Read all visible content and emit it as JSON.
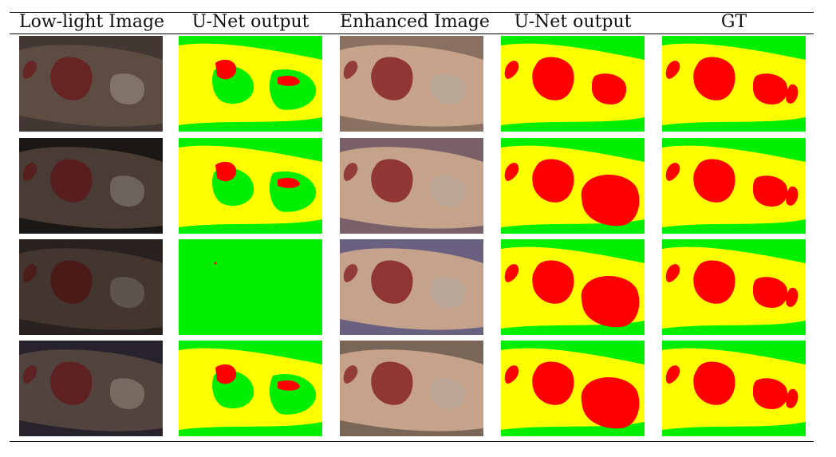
{
  "figure": {
    "columns": [
      {
        "label": "Low-light Image",
        "kind": "photo",
        "variant": "lowlight"
      },
      {
        "label": "U-Net output",
        "kind": "mask",
        "variant": "unet_low"
      },
      {
        "label": "Enhanced Image",
        "kind": "photo",
        "variant": "enhanced"
      },
      {
        "label": "U-Net output",
        "kind": "mask",
        "variant": "unet_enh"
      },
      {
        "label": "GT",
        "kind": "mask",
        "variant": "gt"
      }
    ],
    "rows": 4,
    "colors": {
      "background_class": "#00ee00",
      "skin_class": "#ffff00",
      "wound_class": "#ff0000",
      "phantom_skin": "#c9a58c",
      "wound_tissue": "#8a2a2a",
      "graft_tissue": "#b8a898"
    }
  }
}
